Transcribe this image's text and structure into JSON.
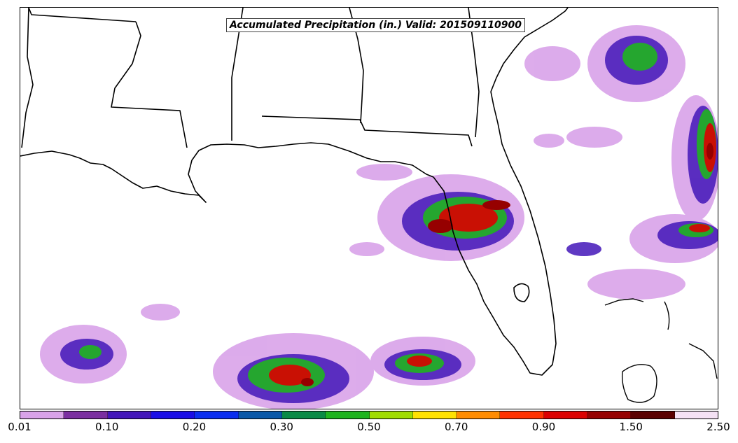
{
  "title": "Accumulated Precipitation (in.) Valid: 201509110900",
  "colorbar": {
    "colors": [
      "#d9a3e9",
      "#7b2fa0",
      "#4316b9",
      "#1a0de6",
      "#0a2ef0",
      "#0a58a8",
      "#0a8a46",
      "#1fb41f",
      "#a0dc00",
      "#ffe100",
      "#ff8c00",
      "#ff3200",
      "#dc0000",
      "#960000",
      "#5a0000",
      "#f4e1f4"
    ],
    "tick_labels": [
      "0.01",
      "0.10",
      "0.20",
      "0.30",
      "0.50",
      "0.70",
      "0.90",
      "1.50",
      "2.50"
    ]
  }
}
